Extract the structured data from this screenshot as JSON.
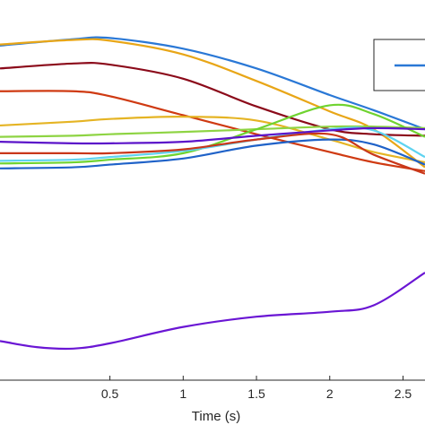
{
  "chart_data": {
    "type": "line",
    "title": "",
    "xlabel": "Time (s)",
    "ylabel": "",
    "xlim": [
      -0.25,
      2.65
    ],
    "ylim": [
      0,
      1
    ],
    "x_ticks": [
      0.5,
      1,
      1.5,
      2,
      2.5
    ],
    "x_tick_labels": [
      "0.5",
      "1",
      "1.5",
      "2",
      "2.5"
    ],
    "grid": false,
    "legend_position": "top-right",
    "legend_entries": [
      {
        "color": "#2a78d6"
      }
    ],
    "series": [
      {
        "color": "#2a78d6",
        "x": [
          -0.25,
          0.25,
          0.5,
          1.0,
          1.5,
          2.0,
          2.3,
          2.65
        ],
        "y": [
          0.88,
          0.897,
          0.9,
          0.872,
          0.82,
          0.75,
          0.71,
          0.66
        ]
      },
      {
        "color": "#e8a617",
        "x": [
          -0.25,
          0.25,
          0.5,
          1.0,
          1.5,
          2.0,
          2.3,
          2.65
        ],
        "y": [
          0.883,
          0.895,
          0.893,
          0.857,
          0.787,
          0.707,
          0.66,
          0.56
        ]
      },
      {
        "color": "#8b0a1a",
        "x": [
          -0.25,
          0.25,
          0.5,
          1.0,
          1.5,
          2.0,
          2.3,
          2.65
        ],
        "y": [
          0.82,
          0.833,
          0.83,
          0.793,
          0.72,
          0.66,
          0.647,
          0.643
        ]
      },
      {
        "color": "#cf3a12",
        "x": [
          -0.25,
          0.25,
          0.5,
          1.0,
          1.5,
          2.0,
          2.3,
          2.65
        ],
        "y": [
          0.76,
          0.76,
          0.747,
          0.697,
          0.647,
          0.6,
          0.573,
          0.55
        ]
      },
      {
        "color": "#e5b424",
        "x": [
          -0.25,
          0.25,
          0.5,
          1.0,
          1.5,
          2.0,
          2.3,
          2.65
        ],
        "y": [
          0.67,
          0.68,
          0.687,
          0.693,
          0.683,
          0.633,
          0.6,
          0.573
        ]
      },
      {
        "color": "#8ed443",
        "x": [
          -0.25,
          0.25,
          0.5,
          1.0,
          1.5,
          2.0,
          2.3,
          2.65
        ],
        "y": [
          0.64,
          0.643,
          0.647,
          0.653,
          0.66,
          0.667,
          0.667,
          0.663
        ]
      },
      {
        "color": "#6fd330",
        "x": [
          -0.25,
          0.25,
          0.5,
          1.0,
          1.5,
          2.0,
          2.3,
          2.65
        ],
        "y": [
          0.57,
          0.573,
          0.58,
          0.597,
          0.66,
          0.723,
          0.7,
          0.64
        ]
      },
      {
        "color": "#5ed3f0",
        "x": [
          -0.25,
          0.25,
          0.5,
          1.0,
          1.5,
          2.0,
          2.3,
          2.65
        ],
        "y": [
          0.577,
          0.58,
          0.587,
          0.603,
          0.633,
          0.66,
          0.657,
          0.587
        ]
      },
      {
        "color": "#1f62c8",
        "x": [
          -0.25,
          0.25,
          0.5,
          1.0,
          1.5,
          2.0,
          2.3,
          2.65
        ],
        "y": [
          0.557,
          0.56,
          0.567,
          0.583,
          0.617,
          0.633,
          0.62,
          0.567
        ]
      },
      {
        "color": "#c9371a",
        "x": [
          -0.25,
          0.25,
          0.5,
          1.0,
          1.5,
          2.0,
          2.3,
          2.65
        ],
        "y": [
          0.597,
          0.597,
          0.597,
          0.607,
          0.633,
          0.647,
          0.593,
          0.543
        ]
      },
      {
        "color": "#5b13c9",
        "x": [
          -0.25,
          0.25,
          0.5,
          1.0,
          1.5,
          2.0,
          2.3,
          2.65
        ],
        "y": [
          0.627,
          0.623,
          0.623,
          0.627,
          0.643,
          0.657,
          0.663,
          0.66
        ]
      },
      {
        "color": "#6a16d4",
        "x": [
          -0.25,
          0.0,
          0.25,
          0.5,
          1.0,
          1.5,
          2.0,
          2.3,
          2.65
        ],
        "y": [
          0.103,
          0.087,
          0.083,
          0.097,
          0.14,
          0.167,
          0.18,
          0.197,
          0.283
        ]
      }
    ]
  }
}
